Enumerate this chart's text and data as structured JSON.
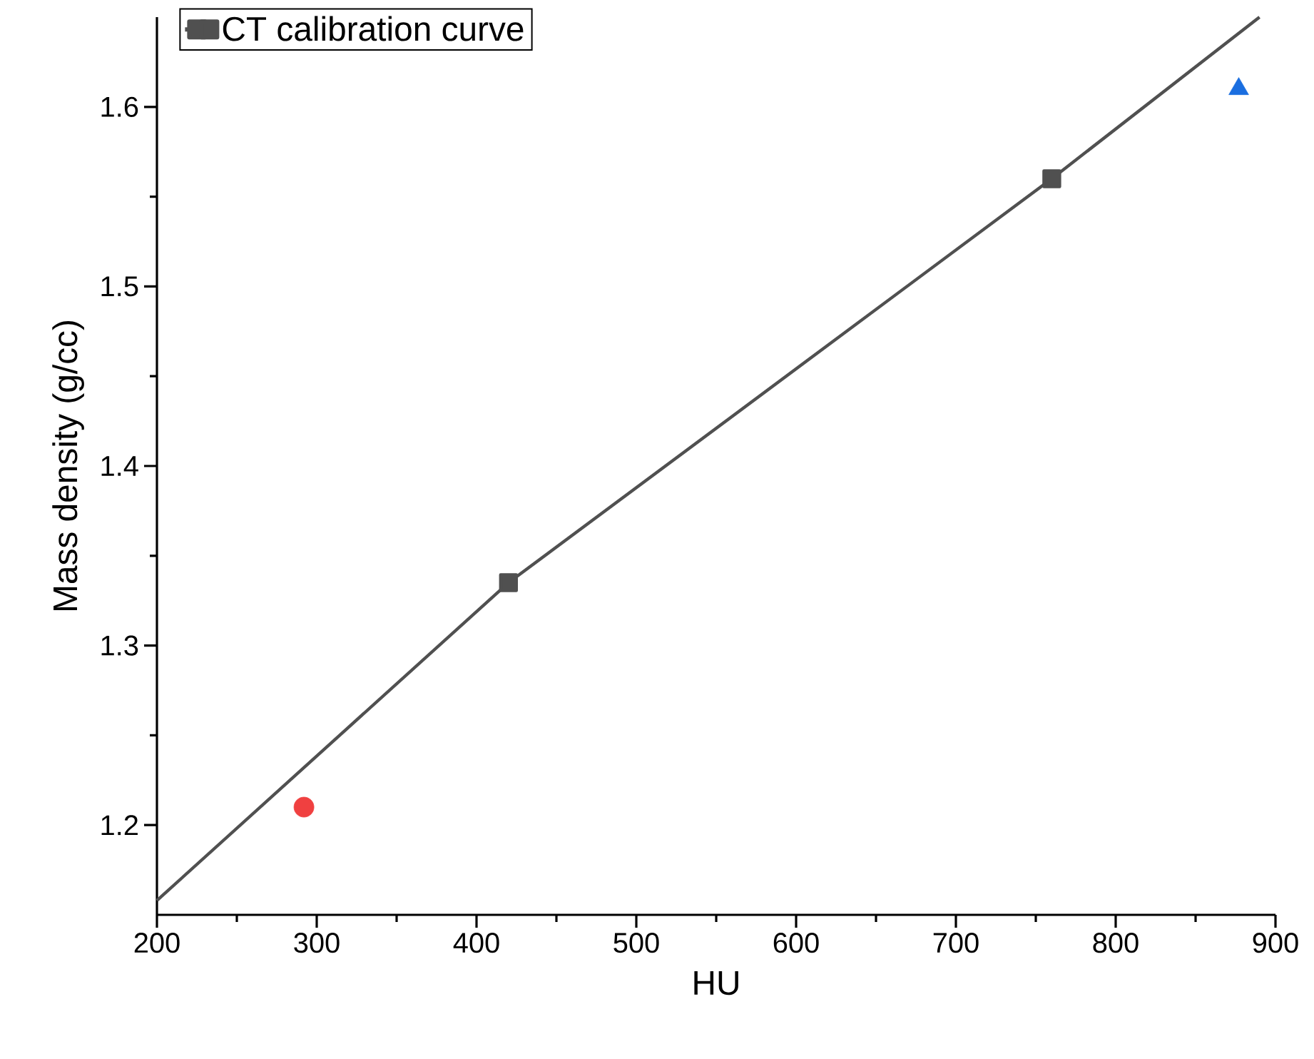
{
  "chart_data": {
    "type": "line",
    "xlabel": "HU",
    "ylabel": "Mass density (g/cc)",
    "xlim": [
      200,
      900
    ],
    "ylim": [
      1.15,
      1.65
    ],
    "xticks": [
      200,
      300,
      400,
      500,
      600,
      700,
      800,
      900
    ],
    "yticks": [
      1.2,
      1.3,
      1.4,
      1.5,
      1.6
    ],
    "legend": "top left",
    "grid": false,
    "series": [
      {
        "name": "CT calibration curve",
        "color": "#505050",
        "marker": "square",
        "x": [
          200,
          420,
          760,
          890
        ],
        "values": [
          1.158,
          1.335,
          1.56,
          1.65
        ]
      },
      {
        "type": "scatter",
        "color": "#f04040",
        "marker": "circle",
        "x": [
          292
        ],
        "values": [
          1.21
        ]
      },
      {
        "type": "scatter",
        "color": "#1a6ee0",
        "marker": "triangle",
        "x": [
          877
        ],
        "values": [
          1.61
        ]
      }
    ]
  }
}
